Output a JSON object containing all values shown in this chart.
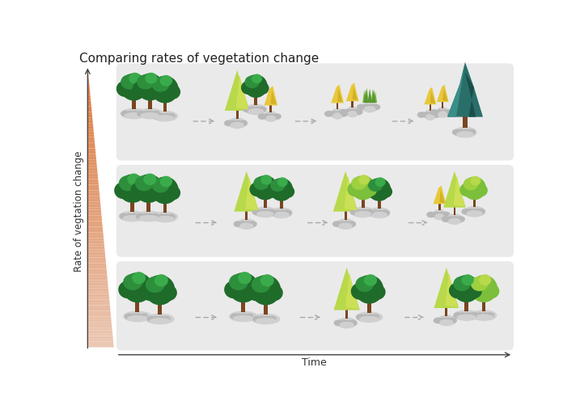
{
  "title": "Comparing rates of vegetation change",
  "ylabel": "Rate of vegtation change",
  "xlabel": "Time",
  "bg_color": "#ffffff",
  "panel_bg": "#eaeaea",
  "title_fontsize": 11,
  "colors": {
    "dark_green1": "#2d8f3c",
    "dark_green2": "#1f6b2a",
    "dark_green3": "#3aab4a",
    "mid_green1": "#7bbf3a",
    "mid_green2": "#9ed040",
    "light_green1": "#b8d94a",
    "light_green2": "#cce055",
    "yellow1": "#e8c83a",
    "yellow2": "#d4b028",
    "brown": "#7a4520",
    "teal1": "#2a6e6a",
    "teal2": "#1a4e4a",
    "teal3": "#3a8e88",
    "grass1": "#78b840",
    "grass2": "#5a9830",
    "grass3": "#9ed858",
    "root_light": "#d0d0d0",
    "root_dark": "#b8b8b8"
  }
}
